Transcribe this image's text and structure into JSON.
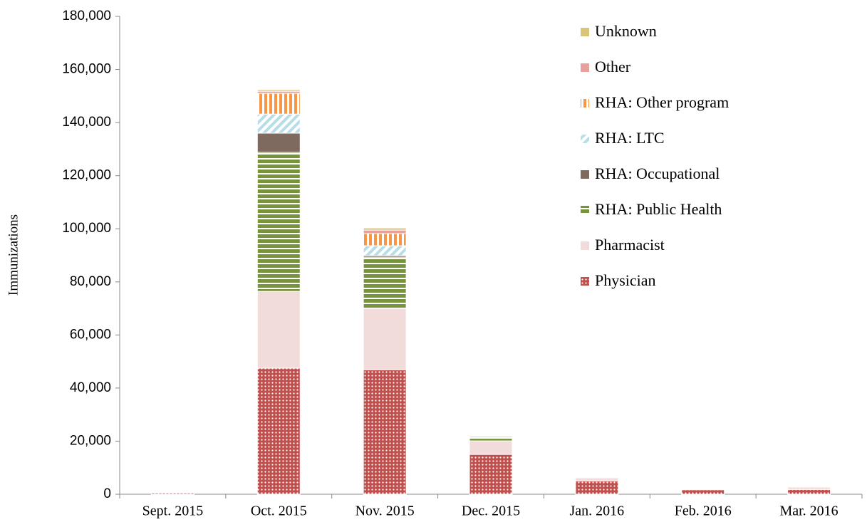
{
  "chart_data": {
    "type": "stacked_bar",
    "y_label": "Immunizations",
    "categories": [
      "Sept. 2015",
      "Oct. 2015",
      "Nov. 2015",
      "Dec. 2015",
      "Jan. 2016",
      "Feb. 2016",
      "Mar. 2016"
    ],
    "series": [
      {
        "name": "Physician",
        "color": "#c0504d",
        "pattern": "dots",
        "values": [
          500,
          47500,
          46900,
          15000,
          5000,
          1700,
          1800
        ]
      },
      {
        "name": "Pharmacist",
        "color": "#f2dcdb",
        "values": [
          100,
          28900,
          23100,
          5100,
          1200,
          300,
          900
        ]
      },
      {
        "name": "RHA: Public Health",
        "color": "#77933c",
        "pattern": "hstripes",
        "values": [
          50,
          52400,
          19300,
          1600,
          400,
          100,
          300
        ]
      },
      {
        "name": "RHA: Occupational",
        "color": "#7f6a5f",
        "values": [
          0,
          7200,
          600,
          100,
          50,
          20,
          30
        ]
      },
      {
        "name": "RHA: LTC",
        "color": "#b7dee8",
        "pattern": "diag",
        "values": [
          0,
          7200,
          3700,
          200,
          50,
          20,
          30
        ]
      },
      {
        "name": "RHA: Other program",
        "color": "#f79646",
        "pattern": "vstripes",
        "values": [
          50,
          7800,
          4600,
          300,
          100,
          50,
          100
        ]
      },
      {
        "name": "Other",
        "color": "#e6a09d",
        "values": [
          50,
          800,
          1300,
          200,
          50,
          30,
          50
        ]
      },
      {
        "name": "Unknown",
        "color": "#d8c57c",
        "values": [
          20,
          600,
          800,
          200,
          50,
          30,
          50
        ]
      }
    ],
    "ylim": [
      0,
      180000
    ],
    "yticks": [
      0,
      {
        "value": 20000,
        "label": "20,000"
      },
      {
        "value": 40000,
        "label": "40,000"
      },
      {
        "value": 60000,
        "label": "60,000"
      },
      {
        "value": 80000,
        "label": "80,000"
      },
      {
        "value": 100000,
        "label": "100,000"
      },
      {
        "value": 120000,
        "label": "120,000"
      },
      {
        "value": 140000,
        "label": "140,000"
      },
      {
        "value": 160000,
        "label": "160,000"
      },
      {
        "value": 180000,
        "label": "180,000"
      }
    ],
    "legend": "top-right"
  }
}
